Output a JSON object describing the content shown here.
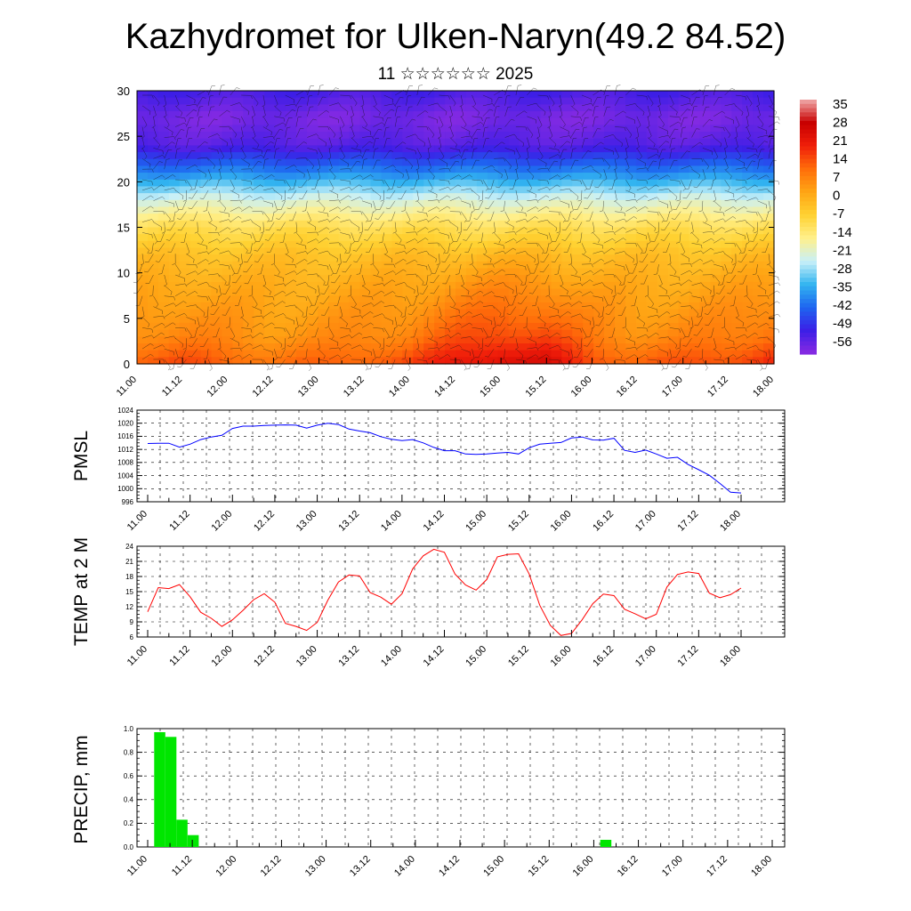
{
  "title": "Kazhydromet for Ulken-Naryn(49.2 84.52)",
  "subtitle": "11 ☆☆☆☆☆☆ 2025",
  "chart_data": [
    {
      "id": "cross_section",
      "type": "heatmap",
      "ylabel": "",
      "ylim": [
        0,
        30
      ],
      "yticks": [
        "0",
        "5",
        "10",
        "15",
        "20",
        "25",
        "30"
      ],
      "x_tick_labels": [
        "11.00",
        "11.12",
        "12.00",
        "12.12",
        "13.00",
        "13.12",
        "14.00",
        "14.12",
        "15.00",
        "15.12",
        "16.00",
        "16.12",
        "17.00",
        "17.12",
        "18.00"
      ],
      "colorbar": {
        "labels": [
          "35",
          "28",
          "21",
          "14",
          "7",
          "0",
          "-7",
          "-14",
          "-21",
          "-28",
          "-35",
          "-42",
          "-49",
          "-56"
        ],
        "range": [
          -60,
          38
        ],
        "colors": [
          "#8a2be2",
          "#3c1ee6",
          "#1e64f0",
          "#32b4f0",
          "#c8f0f8",
          "#fff08c",
          "#ffd232",
          "#ffa514",
          "#ff6e0a",
          "#f01e0a",
          "#c80000",
          "#f0aaaa"
        ]
      },
      "profile_levels": [
        0,
        3,
        6,
        9,
        12,
        15,
        18,
        21,
        24,
        27,
        30
      ],
      "profile_temps": [
        14,
        7,
        4,
        1,
        -3,
        -10,
        -22,
        -38,
        -54,
        -58,
        -52
      ],
      "surface_anomaly": [
        0,
        1,
        -1,
        -3,
        -2,
        0,
        2,
        8,
        12,
        11,
        2,
        -1,
        0,
        2,
        6
      ],
      "overlay": "wind barbs"
    },
    {
      "id": "pmsl",
      "type": "line",
      "ylabel": "PMSL",
      "ylim": [
        996,
        1024
      ],
      "yticks": [
        "996",
        "1000",
        "1004",
        "1008",
        "1012",
        "1016",
        "1020",
        "1024"
      ],
      "x_tick_labels": [
        "11.00",
        "11.12",
        "12.00",
        "12.12",
        "13.00",
        "13.12",
        "14.00",
        "14.12",
        "15.00",
        "15.12",
        "16.00",
        "16.12",
        "17.00",
        "17.12",
        "18.00"
      ],
      "x": [
        0,
        3,
        6,
        9,
        12,
        15,
        18,
        21,
        24,
        27,
        30,
        33,
        36,
        39,
        42,
        45,
        48,
        51,
        54,
        57,
        60,
        63,
        66,
        69,
        72,
        75,
        78,
        81,
        84,
        87,
        90,
        93,
        96,
        99,
        102,
        105,
        108,
        111,
        114,
        117,
        120,
        123,
        126,
        129,
        132,
        135,
        138,
        141,
        144,
        147,
        150,
        153,
        156,
        159,
        162,
        165,
        168
      ],
      "series": [
        {
          "color": "#0000ff",
          "values": [
            1013.8,
            1013.9,
            1013.9,
            1012.7,
            1013.6,
            1015.0,
            1015.8,
            1016.3,
            1018.4,
            1019.1,
            1019.1,
            1019.3,
            1019.4,
            1019.5,
            1019.4,
            1018.5,
            1019.4,
            1020.0,
            1019.6,
            1018.2,
            1017.6,
            1017.1,
            1015.9,
            1015.1,
            1014.7,
            1015.0,
            1014.0,
            1012.6,
            1011.6,
            1011.6,
            1010.6,
            1010.5,
            1010.6,
            1010.9,
            1011.1,
            1010.6,
            1012.5,
            1013.6,
            1013.9,
            1014.1,
            1015.5,
            1015.8,
            1014.9,
            1014.8,
            1015.4,
            1011.7,
            1011.1,
            1011.8,
            1010.6,
            1009.3,
            1009.6,
            1007.4,
            1005.8,
            1004.1,
            1001.6,
            998.9,
            998.7
          ]
        }
      ]
    },
    {
      "id": "t2m",
      "type": "line",
      "ylabel": "TEMP at 2 M",
      "ylim": [
        6,
        24
      ],
      "yticks": [
        "6",
        "9",
        "12",
        "15",
        "18",
        "21",
        "24"
      ],
      "x_tick_labels": [
        "11.00",
        "11.12",
        "12.00",
        "12.12",
        "13.00",
        "13.12",
        "14.00",
        "14.12",
        "15.00",
        "15.12",
        "16.00",
        "16.12",
        "17.00",
        "17.12",
        "18.00"
      ],
      "x": [
        0,
        3,
        6,
        9,
        12,
        15,
        18,
        21,
        24,
        27,
        30,
        33,
        36,
        39,
        42,
        45,
        48,
        51,
        54,
        57,
        60,
        63,
        66,
        69,
        72,
        75,
        78,
        81,
        84,
        87,
        90,
        93,
        96,
        99,
        102,
        105,
        108,
        111,
        114,
        117,
        120,
        123,
        126,
        129,
        132,
        135,
        138,
        141,
        144,
        147,
        150,
        153,
        156,
        159,
        162,
        165,
        168
      ],
      "series": [
        {
          "color": "#ff0000",
          "values": [
            11.0,
            15.8,
            15.6,
            16.4,
            14.0,
            10.9,
            9.7,
            8.1,
            9.4,
            11.3,
            13.4,
            14.6,
            12.9,
            8.7,
            8.1,
            7.3,
            8.9,
            13.3,
            16.9,
            18.3,
            18.1,
            14.8,
            13.9,
            12.5,
            14.6,
            19.5,
            22.1,
            23.4,
            22.8,
            18.5,
            16.3,
            15.3,
            17.4,
            21.9,
            22.4,
            22.5,
            18.5,
            12.3,
            8.3,
            6.3,
            6.7,
            9.4,
            12.6,
            14.5,
            14.2,
            11.5,
            10.6,
            9.6,
            10.5,
            15.9,
            18.4,
            18.9,
            18.6,
            14.7,
            13.8,
            14.4,
            15.7
          ]
        }
      ]
    },
    {
      "id": "precip",
      "type": "bar",
      "ylabel": "PRECIP, mm",
      "ylim": [
        0,
        1.0
      ],
      "yticks": [
        "0.0",
        "0.2",
        "0.4",
        "0.6",
        "0.8",
        "1.0"
      ],
      "x_tick_labels": [
        "11.00",
        "11.12",
        "12.00",
        "12.12",
        "13.00",
        "13.12",
        "14.00",
        "14.12",
        "15.00",
        "15.12",
        "16.00",
        "16.12",
        "17.00",
        "17.12",
        "18.00"
      ],
      "bar_width_hours": 3,
      "x": [
        3,
        6,
        9,
        12,
        123
      ],
      "values": [
        0.97,
        0.93,
        0.23,
        0.1,
        0.06
      ],
      "color": "#00e600"
    }
  ]
}
